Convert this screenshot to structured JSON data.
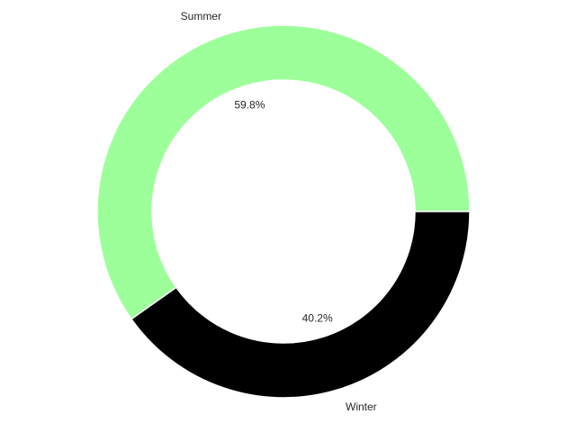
{
  "chart_data": {
    "type": "pie",
    "donut": true,
    "title": "",
    "slices": [
      {
        "label": "Summer",
        "value": 59.8,
        "pct_label": "59.8%",
        "color": "#9cff99"
      },
      {
        "label": "Winter",
        "value": 40.2,
        "pct_label": "40.2%",
        "color": "#000000"
      }
    ],
    "start_angle_deg": 0,
    "direction": "counterclockwise",
    "slice_edge_color": "#ffffff",
    "legend": "none"
  }
}
